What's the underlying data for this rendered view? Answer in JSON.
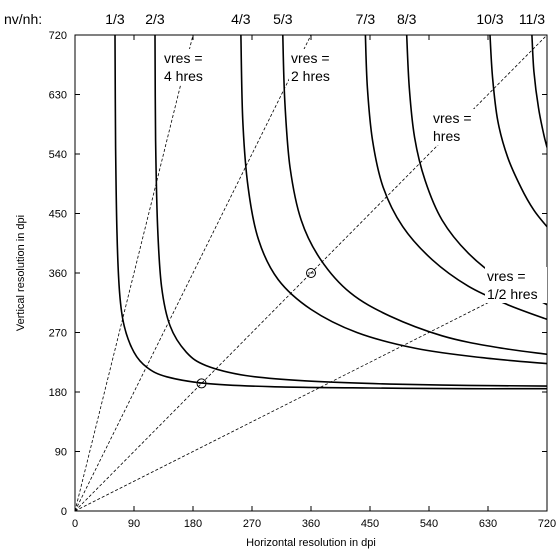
{
  "chart_data": {
    "type": "line",
    "title": "",
    "xlabel": "Horizontal resolution in dpi",
    "ylabel": "Vertical resolution in dpi",
    "xlim": [
      0,
      720
    ],
    "ylim": [
      0,
      720
    ],
    "xticks": [
      0,
      90,
      180,
      270,
      360,
      450,
      540,
      630,
      720
    ],
    "yticks": [
      0,
      90,
      180,
      270,
      360,
      450,
      540,
      630,
      720
    ],
    "grid": false,
    "curve_label_prefix": "nv/nh:",
    "series": [
      {
        "name": "1/3",
        "x": [
          61,
          62,
          64,
          68,
          75,
          90,
          110,
          140,
          200,
          300,
          450,
          600,
          720
        ],
        "y": [
          720,
          550,
          420,
          330,
          280,
          240,
          217,
          203,
          193,
          188,
          186,
          185,
          185
        ]
      },
      {
        "name": "2/3",
        "x": [
          122,
          123,
          126,
          132,
          145,
          170,
          200,
          260,
          350,
          480,
          600,
          720
        ],
        "y": [
          720,
          560,
          430,
          340,
          280,
          240,
          220,
          205,
          197,
          192,
          190,
          189
        ]
      },
      {
        "name": "4/3",
        "x": [
          253,
          256,
          264,
          280,
          310,
          360,
          430,
          520,
          620,
          720
        ],
        "y": [
          720,
          590,
          490,
          410,
          350,
          305,
          270,
          246,
          232,
          223
        ]
      },
      {
        "name": "5/3",
        "x": [
          317,
          320,
          328,
          345,
          375,
          420,
          480,
          560,
          640,
          720
        ],
        "y": [
          720,
          620,
          520,
          440,
          380,
          330,
          295,
          265,
          248,
          237
        ]
      },
      {
        "name": "7/3",
        "x": [
          443,
          446,
          454,
          470,
          500,
          545,
          600,
          660,
          720
        ],
        "y": [
          720,
          640,
          560,
          490,
          430,
          380,
          340,
          312,
          290
        ]
      },
      {
        "name": "8/3",
        "x": [
          506,
          510,
          518,
          534,
          560,
          600,
          650,
          720
        ],
        "y": [
          720,
          640,
          565,
          500,
          440,
          390,
          350,
          312
        ]
      },
      {
        "name": "10/3",
        "x": [
          633,
          637,
          645,
          660,
          680,
          700,
          720
        ],
        "y": [
          720,
          655,
          590,
          535,
          490,
          455,
          430
        ]
      },
      {
        "name": "11/3",
        "x": [
          697,
          700,
          707,
          715,
          720
        ],
        "y": [
          720,
          665,
          610,
          570,
          550
        ]
      }
    ],
    "reference_lines": [
      {
        "label_line1": "vres =",
        "label_line2": "4 hres",
        "x": [
          0,
          180
        ],
        "y": [
          0,
          720
        ]
      },
      {
        "label_line1": "vres =",
        "label_line2": "2 hres",
        "x": [
          0,
          360
        ],
        "y": [
          0,
          720
        ]
      },
      {
        "label_line1": "vres =",
        "label_line2": "hres",
        "x": [
          0,
          720
        ],
        "y": [
          0,
          720
        ]
      },
      {
        "label_line1": "vres =",
        "label_line2": "1/2 hres",
        "x": [
          0,
          720
        ],
        "y": [
          0,
          360
        ]
      }
    ],
    "markers": [
      {
        "x": 193,
        "y": 193
      },
      {
        "x": 360,
        "y": 360
      }
    ]
  }
}
